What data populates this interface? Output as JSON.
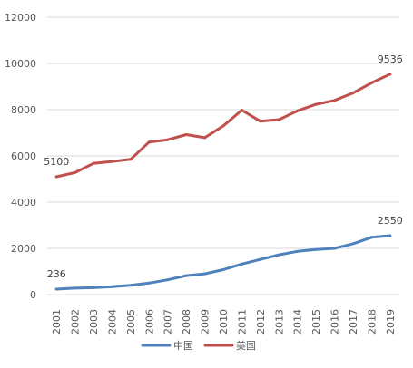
{
  "chart_data": {
    "type": "line",
    "title": "",
    "xlabel": "",
    "ylabel": "",
    "x": [
      "2001",
      "2002",
      "2003",
      "2004",
      "2005",
      "2006",
      "2007",
      "2008",
      "2009",
      "2010",
      "2011",
      "2012",
      "2013",
      "2014",
      "2015",
      "2016",
      "2017",
      "2018",
      "2019"
    ],
    "ylim": [
      0,
      12000
    ],
    "yticks": [
      0,
      2000,
      4000,
      6000,
      8000,
      10000,
      12000
    ],
    "grid": true,
    "legend_position": "bottom",
    "series": [
      {
        "name": "中国",
        "color": "#4f81bd",
        "values": [
          236,
          280,
          300,
          340,
          400,
          500,
          640,
          820,
          900,
          1080,
          1320,
          1520,
          1720,
          1870,
          1950,
          2000,
          2200,
          2480,
          2550
        ]
      },
      {
        "name": "美国",
        "color": "#c0504d",
        "values": [
          5100,
          5280,
          5680,
          5760,
          5850,
          6600,
          6700,
          6920,
          6790,
          7300,
          7980,
          7500,
          7570,
          7950,
          8230,
          8400,
          8720,
          9160,
          9536
        ]
      }
    ],
    "data_labels": [
      {
        "series": 0,
        "index": 0,
        "text": "236"
      },
      {
        "series": 0,
        "index": 18,
        "text": "2550"
      },
      {
        "series": 1,
        "index": 0,
        "text": "5100"
      },
      {
        "series": 1,
        "index": 18,
        "text": "9536"
      }
    ]
  }
}
